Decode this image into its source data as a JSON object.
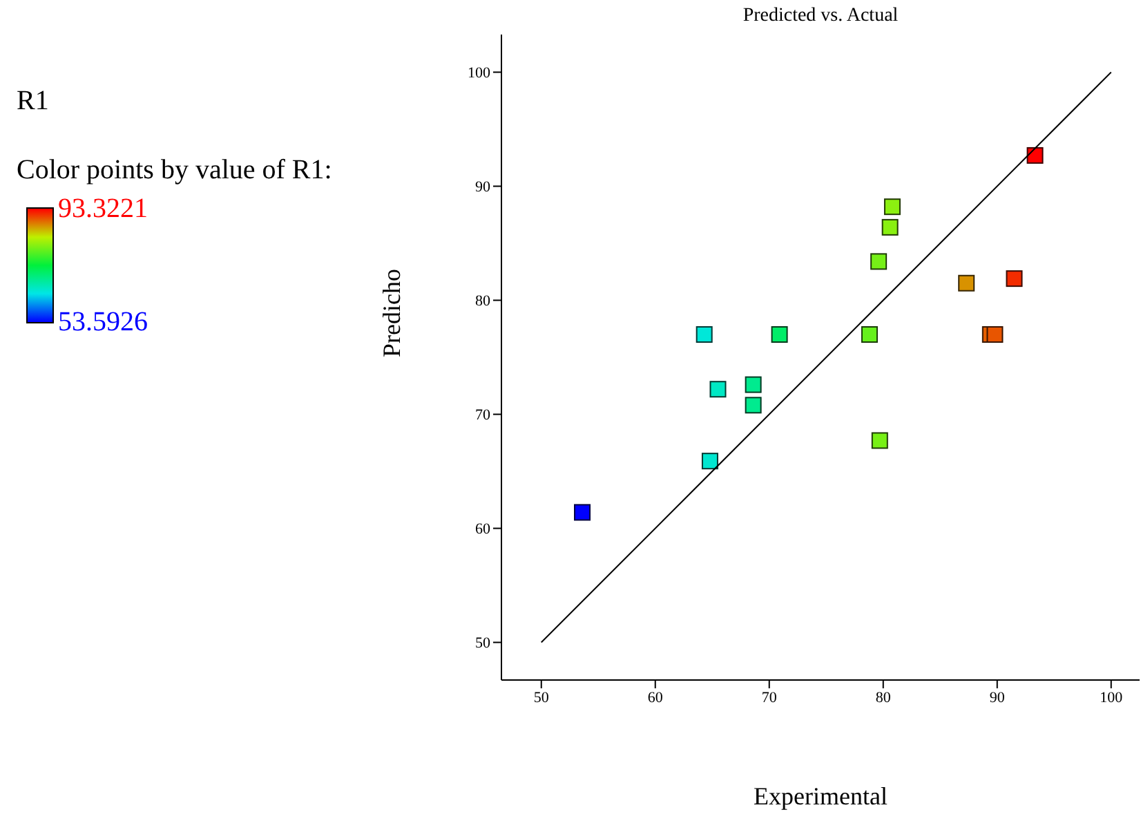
{
  "chart_data": {
    "type": "scatter",
    "title": "Predicted vs. Actual",
    "xlabel": "Experimental",
    "ylabel": "Predicho",
    "annotations": [
      "R1",
      "Color points by value of R1:"
    ],
    "clim": [
      53.5926,
      93.3221
    ],
    "cticks": [
      53.5926,
      93.3221
    ],
    "xlim": [
      46.5,
      102.5
    ],
    "ylim": [
      46.7,
      103.3
    ],
    "xticks": [
      50,
      60,
      70,
      80,
      90,
      100
    ],
    "yticks": [
      50,
      60,
      70,
      80,
      90,
      100
    ],
    "grid": false,
    "legend": false,
    "marker": "square",
    "series": [
      {
        "x": [
          53.5926,
          64.8,
          64.3,
          65.5,
          68.6,
          68.6,
          70.9,
          78.8,
          79.7,
          79.6,
          80.6,
          80.8,
          87.3,
          91.5,
          89.4,
          89.8,
          93.3221
        ],
        "values": [
          61.4,
          65.9,
          77.0,
          72.2,
          72.6,
          70.8,
          77.0,
          77.0,
          67.7,
          83.4,
          86.4,
          88.2,
          81.5,
          81.9,
          77.0,
          77.0,
          92.7
        ],
        "cvalues": [
          53.5926,
          64.8,
          64.3,
          65.5,
          68.6,
          68.6,
          70.9,
          78.8,
          79.7,
          79.6,
          80.6,
          80.8,
          87.3,
          91.5,
          89.4,
          89.8,
          93.3221
        ],
        "colors": [
          "#0000ff",
          "#00e7d0",
          "#00e7d9",
          "#00e8c4",
          "#00eb8f",
          "#00eb8f",
          "#00ed68",
          "#66f01c",
          "#77f016",
          "#76f017",
          "#89f011",
          "#8cf010",
          "#d89200",
          "#f32c00",
          "#e55f00",
          "#e85500",
          "#ff0000"
        ]
      },
      {
        "type": "line",
        "marker": "none",
        "color": "#000000",
        "x": [
          50,
          100
        ],
        "values": [
          50,
          100
        ]
      }
    ]
  }
}
